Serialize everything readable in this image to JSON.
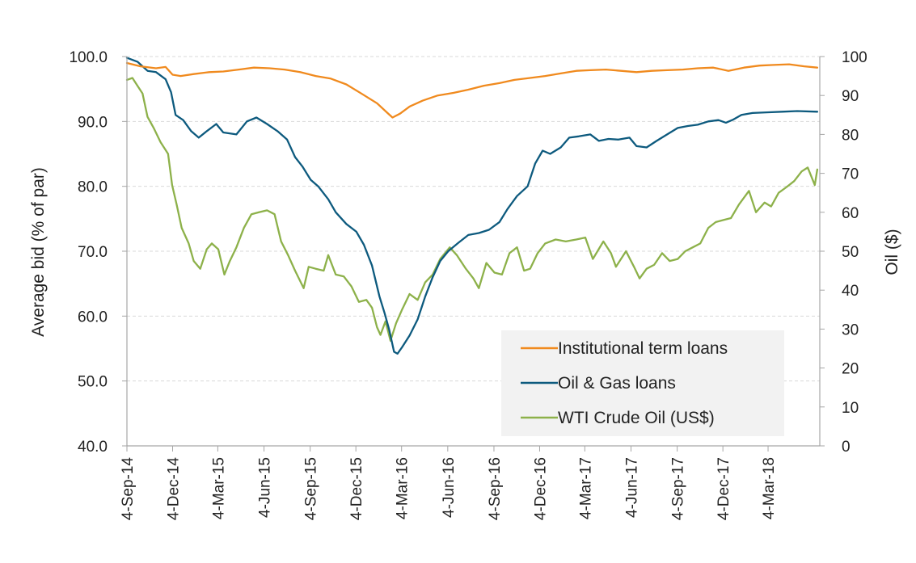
{
  "chart_data": {
    "type": "line",
    "title": "",
    "ylabel": "Average bid (% of par)",
    "y2label": "Oil ($)",
    "ylim": [
      40,
      100
    ],
    "y2lim": [
      0,
      100
    ],
    "xlim": [
      "2014-09-04",
      "2018-06-15"
    ],
    "y_ticks": [
      "40.0",
      "50.0",
      "60.0",
      "70.0",
      "80.0",
      "90.0",
      "100.0"
    ],
    "y2_ticks": [
      "0",
      "10",
      "20",
      "30",
      "40",
      "50",
      "60",
      "70",
      "80",
      "90",
      "100"
    ],
    "x_ticks": [
      {
        "label": "4-Sep-14",
        "date": "2014-09-04"
      },
      {
        "label": "4-Dec-14",
        "date": "2014-12-04"
      },
      {
        "label": "4-Mar-15",
        "date": "2015-03-04"
      },
      {
        "label": "4-Jun-15",
        "date": "2015-06-04"
      },
      {
        "label": "4-Sep-15",
        "date": "2015-09-04"
      },
      {
        "label": "4-Dec-15",
        "date": "2015-12-04"
      },
      {
        "label": "4-Mar-16",
        "date": "2016-03-04"
      },
      {
        "label": "4-Jun-16",
        "date": "2016-06-04"
      },
      {
        "label": "4-Sep-16",
        "date": "2016-09-04"
      },
      {
        "label": "4-Dec-16",
        "date": "2016-12-04"
      },
      {
        "label": "4-Mar-17",
        "date": "2017-03-04"
      },
      {
        "label": "4-Jun-17",
        "date": "2017-06-04"
      },
      {
        "label": "4-Sep-17",
        "date": "2017-09-04"
      },
      {
        "label": "4-Dec-17",
        "date": "2017-12-04"
      },
      {
        "label": "4-Mar-18",
        "date": "2018-03-04"
      }
    ],
    "grid": "horizontal-dashed",
    "legend": "bottom-right",
    "series": [
      {
        "name": "Institutional term loans",
        "axis": "left",
        "color": "#F08A1E",
        "points": [
          [
            "2014-09-04",
            99.0
          ],
          [
            "2014-10-01",
            98.5
          ],
          [
            "2014-11-01",
            98.2
          ],
          [
            "2014-11-20",
            98.4
          ],
          [
            "2014-12-04",
            97.2
          ],
          [
            "2014-12-20",
            97.0
          ],
          [
            "2015-01-15",
            97.3
          ],
          [
            "2015-02-15",
            97.6
          ],
          [
            "2015-03-15",
            97.7
          ],
          [
            "2015-04-15",
            98.0
          ],
          [
            "2015-05-15",
            98.3
          ],
          [
            "2015-06-15",
            98.2
          ],
          [
            "2015-07-15",
            98.0
          ],
          [
            "2015-08-15",
            97.6
          ],
          [
            "2015-09-15",
            97.0
          ],
          [
            "2015-10-15",
            96.6
          ],
          [
            "2015-11-15",
            95.7
          ],
          [
            "2015-12-15",
            94.3
          ],
          [
            "2016-01-15",
            92.8
          ],
          [
            "2016-02-05",
            91.3
          ],
          [
            "2016-02-15",
            90.6
          ],
          [
            "2016-03-01",
            91.2
          ],
          [
            "2016-03-20",
            92.3
          ],
          [
            "2016-04-15",
            93.2
          ],
          [
            "2016-05-15",
            94.0
          ],
          [
            "2016-06-15",
            94.4
          ],
          [
            "2016-07-15",
            94.9
          ],
          [
            "2016-08-15",
            95.5
          ],
          [
            "2016-09-15",
            95.9
          ],
          [
            "2016-10-15",
            96.4
          ],
          [
            "2016-11-15",
            96.7
          ],
          [
            "2016-12-15",
            97.0
          ],
          [
            "2017-01-15",
            97.4
          ],
          [
            "2017-02-15",
            97.8
          ],
          [
            "2017-03-15",
            97.9
          ],
          [
            "2017-04-15",
            98.0
          ],
          [
            "2017-05-15",
            97.8
          ],
          [
            "2017-06-15",
            97.6
          ],
          [
            "2017-07-15",
            97.8
          ],
          [
            "2017-08-15",
            97.9
          ],
          [
            "2017-09-15",
            98.0
          ],
          [
            "2017-10-15",
            98.2
          ],
          [
            "2017-11-15",
            98.3
          ],
          [
            "2017-12-15",
            97.8
          ],
          [
            "2018-01-15",
            98.3
          ],
          [
            "2018-02-15",
            98.6
          ],
          [
            "2018-03-15",
            98.7
          ],
          [
            "2018-04-15",
            98.8
          ],
          [
            "2018-05-15",
            98.5
          ],
          [
            "2018-06-10",
            98.3
          ]
        ]
      },
      {
        "name": "Oil & Gas loans",
        "axis": "left",
        "color": "#0D5A7E",
        "points": [
          [
            "2014-09-04",
            99.8
          ],
          [
            "2014-09-25",
            99.2
          ],
          [
            "2014-10-15",
            97.8
          ],
          [
            "2014-11-01",
            97.6
          ],
          [
            "2014-11-20",
            96.5
          ],
          [
            "2014-12-01",
            94.5
          ],
          [
            "2014-12-10",
            91.0
          ],
          [
            "2014-12-25",
            90.2
          ],
          [
            "2015-01-10",
            88.5
          ],
          [
            "2015-01-25",
            87.5
          ],
          [
            "2015-02-10",
            88.5
          ],
          [
            "2015-03-01",
            89.6
          ],
          [
            "2015-03-15",
            88.3
          ],
          [
            "2015-04-10",
            88.0
          ],
          [
            "2015-05-01",
            90.0
          ],
          [
            "2015-05-20",
            90.6
          ],
          [
            "2015-06-10",
            89.6
          ],
          [
            "2015-07-01",
            88.5
          ],
          [
            "2015-07-20",
            87.2
          ],
          [
            "2015-08-05",
            84.5
          ],
          [
            "2015-08-20",
            83.0
          ],
          [
            "2015-09-05",
            81.0
          ],
          [
            "2015-09-20",
            80.0
          ],
          [
            "2015-10-10",
            78.0
          ],
          [
            "2015-10-25",
            76.0
          ],
          [
            "2015-11-15",
            74.2
          ],
          [
            "2015-12-05",
            73.0
          ],
          [
            "2015-12-20",
            71.0
          ],
          [
            "2016-01-05",
            67.8
          ],
          [
            "2016-01-20",
            63.0
          ],
          [
            "2016-01-30",
            60.5
          ],
          [
            "2016-02-08",
            58.0
          ],
          [
            "2016-02-18",
            54.5
          ],
          [
            "2016-02-25",
            54.2
          ],
          [
            "2016-03-05",
            55.2
          ],
          [
            "2016-03-20",
            57.0
          ],
          [
            "2016-04-05",
            59.5
          ],
          [
            "2016-04-20",
            63.0
          ],
          [
            "2016-05-05",
            66.0
          ],
          [
            "2016-05-20",
            68.5
          ],
          [
            "2016-06-05",
            70.0
          ],
          [
            "2016-06-25",
            71.3
          ],
          [
            "2016-07-15",
            72.5
          ],
          [
            "2016-08-05",
            72.8
          ],
          [
            "2016-08-25",
            73.3
          ],
          [
            "2016-09-15",
            74.5
          ],
          [
            "2016-10-01",
            76.5
          ],
          [
            "2016-10-20",
            78.5
          ],
          [
            "2016-11-10",
            80.0
          ],
          [
            "2016-11-25",
            83.5
          ],
          [
            "2016-12-10",
            85.5
          ],
          [
            "2016-12-25",
            85.0
          ],
          [
            "2017-01-15",
            86.0
          ],
          [
            "2017-02-01",
            87.5
          ],
          [
            "2017-02-20",
            87.7
          ],
          [
            "2017-03-15",
            88.0
          ],
          [
            "2017-04-01",
            87.0
          ],
          [
            "2017-04-20",
            87.3
          ],
          [
            "2017-05-10",
            87.2
          ],
          [
            "2017-06-01",
            87.5
          ],
          [
            "2017-06-15",
            86.2
          ],
          [
            "2017-07-05",
            86.0
          ],
          [
            "2017-07-25",
            87.0
          ],
          [
            "2017-08-15",
            88.0
          ],
          [
            "2017-09-05",
            89.0
          ],
          [
            "2017-09-25",
            89.3
          ],
          [
            "2017-10-15",
            89.5
          ],
          [
            "2017-11-05",
            90.0
          ],
          [
            "2017-11-25",
            90.2
          ],
          [
            "2017-12-10",
            89.8
          ],
          [
            "2017-12-25",
            90.3
          ],
          [
            "2018-01-10",
            91.0
          ],
          [
            "2018-02-01",
            91.3
          ],
          [
            "2018-03-01",
            91.4
          ],
          [
            "2018-04-01",
            91.5
          ],
          [
            "2018-05-01",
            91.6
          ],
          [
            "2018-06-10",
            91.5
          ]
        ]
      },
      {
        "name": "WTI Crude Oil (US$)",
        "axis": "right",
        "color": "#8DB14A",
        "points": [
          [
            "2014-09-04",
            94.0
          ],
          [
            "2014-09-15",
            94.5
          ],
          [
            "2014-09-25",
            92.5
          ],
          [
            "2014-10-05",
            90.5
          ],
          [
            "2014-10-15",
            84.5
          ],
          [
            "2014-10-28",
            81.5
          ],
          [
            "2014-11-10",
            78.0
          ],
          [
            "2014-11-25",
            75.0
          ],
          [
            "2014-12-03",
            67.0
          ],
          [
            "2014-12-12",
            62.0
          ],
          [
            "2014-12-22",
            56.0
          ],
          [
            "2015-01-05",
            52.0
          ],
          [
            "2015-01-15",
            47.5
          ],
          [
            "2015-01-28",
            45.5
          ],
          [
            "2015-02-10",
            50.5
          ],
          [
            "2015-02-20",
            52.0
          ],
          [
            "2015-03-05",
            50.5
          ],
          [
            "2015-03-17",
            44.0
          ],
          [
            "2015-03-28",
            47.5
          ],
          [
            "2015-04-10",
            51.0
          ],
          [
            "2015-04-25",
            56.0
          ],
          [
            "2015-05-10",
            59.5
          ],
          [
            "2015-05-25",
            60.0
          ],
          [
            "2015-06-10",
            60.5
          ],
          [
            "2015-06-25",
            59.5
          ],
          [
            "2015-07-08",
            52.5
          ],
          [
            "2015-07-22",
            49.0
          ],
          [
            "2015-08-05",
            45.0
          ],
          [
            "2015-08-22",
            40.5
          ],
          [
            "2015-09-01",
            46.0
          ],
          [
            "2015-09-15",
            45.5
          ],
          [
            "2015-10-01",
            45.0
          ],
          [
            "2015-10-10",
            49.0
          ],
          [
            "2015-10-25",
            44.0
          ],
          [
            "2015-11-10",
            43.5
          ],
          [
            "2015-11-25",
            41.0
          ],
          [
            "2015-12-10",
            37.0
          ],
          [
            "2015-12-25",
            37.5
          ],
          [
            "2016-01-05",
            35.5
          ],
          [
            "2016-01-15",
            30.5
          ],
          [
            "2016-01-22",
            28.5
          ],
          [
            "2016-02-01",
            32.0
          ],
          [
            "2016-02-11",
            27.0
          ],
          [
            "2016-02-22",
            31.5
          ],
          [
            "2016-03-05",
            35.0
          ],
          [
            "2016-03-20",
            39.0
          ],
          [
            "2016-04-05",
            37.5
          ],
          [
            "2016-04-20",
            42.0
          ],
          [
            "2016-05-05",
            44.0
          ],
          [
            "2016-05-20",
            48.0
          ],
          [
            "2016-06-08",
            51.0
          ],
          [
            "2016-06-22",
            49.0
          ],
          [
            "2016-07-10",
            45.5
          ],
          [
            "2016-07-25",
            43.0
          ],
          [
            "2016-08-05",
            40.5
          ],
          [
            "2016-08-20",
            47.0
          ],
          [
            "2016-09-05",
            44.5
          ],
          [
            "2016-09-20",
            44.0
          ],
          [
            "2016-10-05",
            49.5
          ],
          [
            "2016-10-20",
            51.0
          ],
          [
            "2016-11-03",
            45.0
          ],
          [
            "2016-11-15",
            45.5
          ],
          [
            "2016-11-30",
            49.5
          ],
          [
            "2016-12-15",
            52.0
          ],
          [
            "2017-01-05",
            53.0
          ],
          [
            "2017-01-25",
            52.5
          ],
          [
            "2017-02-15",
            53.0
          ],
          [
            "2017-03-05",
            53.5
          ],
          [
            "2017-03-20",
            48.0
          ],
          [
            "2017-04-10",
            52.5
          ],
          [
            "2017-04-25",
            49.5
          ],
          [
            "2017-05-05",
            46.0
          ],
          [
            "2017-05-25",
            50.0
          ],
          [
            "2017-06-10",
            46.0
          ],
          [
            "2017-06-21",
            43.0
          ],
          [
            "2017-07-05",
            45.5
          ],
          [
            "2017-07-20",
            46.5
          ],
          [
            "2017-08-05",
            49.5
          ],
          [
            "2017-08-20",
            47.5
          ],
          [
            "2017-09-05",
            48.0
          ],
          [
            "2017-09-20",
            50.0
          ],
          [
            "2017-10-05",
            51.0
          ],
          [
            "2017-10-20",
            52.0
          ],
          [
            "2017-11-05",
            56.0
          ],
          [
            "2017-11-20",
            57.5
          ],
          [
            "2017-12-05",
            58.0
          ],
          [
            "2017-12-20",
            58.5
          ],
          [
            "2018-01-05",
            62.0
          ],
          [
            "2018-01-25",
            65.5
          ],
          [
            "2018-02-08",
            60.0
          ],
          [
            "2018-02-25",
            62.5
          ],
          [
            "2018-03-10",
            61.5
          ],
          [
            "2018-03-25",
            65.0
          ],
          [
            "2018-04-10",
            66.5
          ],
          [
            "2018-04-25",
            68.0
          ],
          [
            "2018-05-10",
            70.5
          ],
          [
            "2018-05-22",
            71.5
          ],
          [
            "2018-06-05",
            67.0
          ],
          [
            "2018-06-10",
            71.0
          ]
        ]
      }
    ]
  }
}
